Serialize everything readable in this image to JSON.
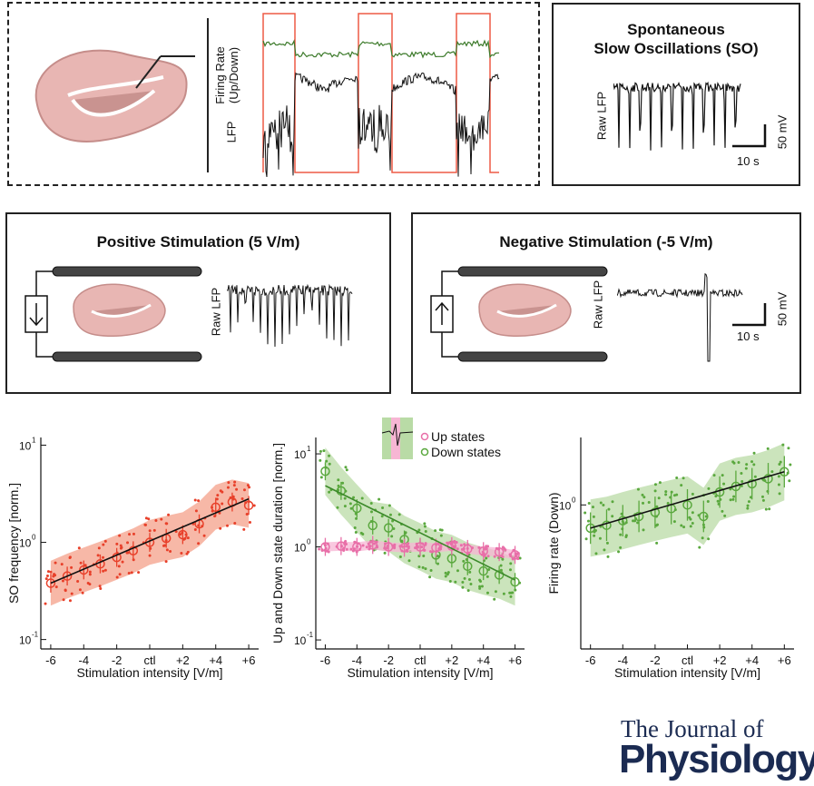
{
  "top_panel": {
    "trace_labels": {
      "firing_rate_line1": "Firing Rate",
      "firing_rate_line2": "(Up/Down)",
      "lfp": "LFP"
    }
  },
  "so_panel": {
    "title_line1": "Spontaneous",
    "title_line2": "Slow Oscillations (SO)",
    "ylabel": "Raw LFP",
    "scalebar_v": "50 mV",
    "scalebar_h": "10 s"
  },
  "pos_panel": {
    "title": "Positive Stimulation (5 V/m)",
    "ylabel": "Raw LFP"
  },
  "neg_panel": {
    "title": "Negative Stimulation (-5 V/m)",
    "ylabel": "Raw LFP",
    "scalebar_v": "50 mV",
    "scalebar_h": "10 s"
  },
  "colors": {
    "red": "#e8402a",
    "salmon_fill": "#f4a08a",
    "green": "#5aa83e",
    "green_fill": "#b9dba6",
    "pink": "#e86fa8",
    "pink_fill": "#f7b6d4",
    "brain": "#e8b6b3",
    "journal": "#1b2b52"
  },
  "chart_data": [
    {
      "type": "scatter",
      "ylabel": "SO frequency [norm.]",
      "xlabel": "Stimulation intensity [V/m]",
      "x_ticklabels": [
        "-6",
        "-4",
        "-2",
        "ctl",
        "+2",
        "+4",
        "+6"
      ],
      "y_ticklabels": [
        "10",
        "10",
        "10"
      ],
      "y_tick_exponents": [
        "-1",
        "0",
        "1"
      ],
      "yscale": "log",
      "ylim": [
        0.08,
        12
      ],
      "series": [
        {
          "x": [
            -6,
            -5,
            -4,
            -3,
            -2,
            -1,
            0,
            1,
            2,
            3,
            4,
            5,
            6
          ],
          "values": [
            0.38,
            0.45,
            0.52,
            0.6,
            0.7,
            0.82,
            1.0,
            1.1,
            1.2,
            1.55,
            2.3,
            2.6,
            2.4
          ]
        }
      ],
      "fit": {
        "x": [
          -6,
          6
        ],
        "y": [
          0.38,
          2.8
        ]
      }
    },
    {
      "type": "scatter",
      "ylabel": "Up and Down state duration [norm.]",
      "xlabel": "Stimulation intensity [V/m]",
      "x_ticklabels": [
        "-6",
        "-4",
        "-2",
        "ctl",
        "+2",
        "+4",
        "+6"
      ],
      "y_ticklabels": [
        "10",
        "10",
        "10"
      ],
      "y_tick_exponents": [
        "-1",
        "0",
        "1"
      ],
      "yscale": "log",
      "ylim": [
        0.08,
        15
      ],
      "legend": [
        "Up states",
        "Down states"
      ],
      "series": [
        {
          "name": "Up states",
          "x": [
            -6,
            -5,
            -4,
            -3,
            -2,
            -1,
            0,
            1,
            2,
            3,
            4,
            5,
            6
          ],
          "values": [
            1.0,
            1.02,
            1.0,
            1.05,
            1.0,
            0.98,
            1.0,
            0.98,
            1.02,
            0.95,
            0.9,
            0.88,
            0.82
          ]
        },
        {
          "name": "Down states",
          "x": [
            -6,
            -5,
            -4,
            -3,
            -2,
            -1,
            0,
            1,
            2,
            3,
            4,
            5,
            6
          ],
          "values": [
            6.5,
            4.0,
            2.6,
            1.7,
            1.6,
            1.2,
            1.0,
            0.82,
            0.75,
            0.62,
            0.55,
            0.5,
            0.42
          ]
        }
      ]
    },
    {
      "type": "scatter",
      "ylabel": "Firing rate (Down)",
      "xlabel": "Stimulation intensity [V/m]",
      "x_ticklabels": [
        "-6",
        "-4",
        "-2",
        "ctl",
        "+2",
        "+4",
        "+6"
      ],
      "y_ticklabels": [
        "10"
      ],
      "y_tick_exponents": [
        "0"
      ],
      "yscale": "log",
      "series": [
        {
          "x": [
            -6,
            -5,
            -4,
            -3,
            -2,
            -1,
            0,
            1,
            2,
            3,
            4,
            5,
            6
          ],
          "values": [
            0.72,
            0.75,
            0.8,
            0.85,
            0.9,
            0.95,
            1.0,
            0.85,
            1.2,
            1.3,
            1.35,
            1.45,
            1.6
          ]
        }
      ]
    }
  ],
  "journal": {
    "line1": "The Journal of",
    "line2": "Physiology"
  }
}
